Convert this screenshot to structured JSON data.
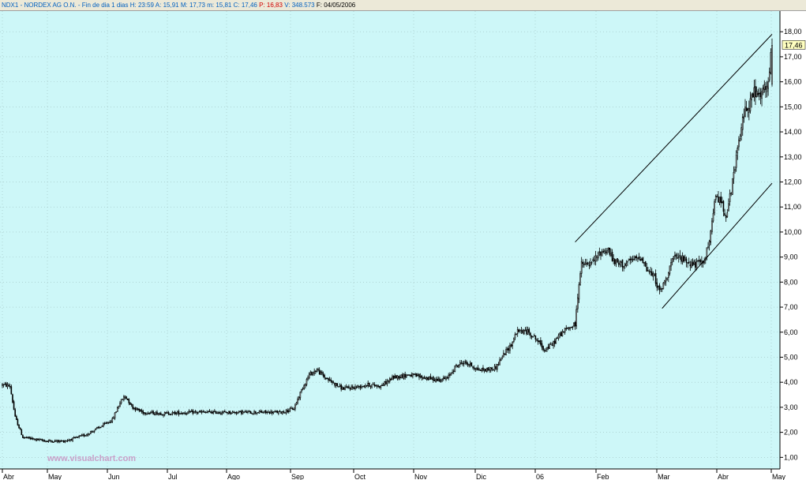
{
  "header": {
    "symbol_name": "NDX1 - NORDEX AG O.N. - Fin de dia 1 dias",
    "h_label": "H:",
    "h_value": "23:59",
    "a_label": "A:",
    "a_value": "15,91",
    "m_label": "M:",
    "m_value": "17,73",
    "mn_label": "m:",
    "mn_value": "15,81",
    "c_label": "C:",
    "c_value": "17,46",
    "p_label": "P:",
    "p_value": "16,83",
    "v_label": "V:",
    "v_value": "348.573",
    "f_label": "F:",
    "f_value": "04/05/2006"
  },
  "watermark": "www.visualchart.com",
  "last_price_tag": "17,46",
  "colors": {
    "background": "#cdf7f8",
    "up": "#ffffff",
    "down": "#000000",
    "grid": "#9fbfbf",
    "close_text": "#d00000"
  },
  "chart_data": {
    "type": "candlestick",
    "y_axis": {
      "min": 0.6,
      "max": 18.7,
      "ticks": [
        "1,00",
        "2,00",
        "3,00",
        "4,00",
        "5,00",
        "6,00",
        "7,00",
        "8,00",
        "9,00",
        "10,00",
        "11,00",
        "12,00",
        "13,00",
        "14,00",
        "15,00",
        "16,00",
        "17,00",
        "18,00"
      ]
    },
    "month_labels": [
      "Abr",
      "May",
      "Jun",
      "Jul",
      "Ago",
      "Sep",
      "Oct",
      "Nov",
      "Dic",
      "06",
      "Feb",
      "Mar",
      "Abr",
      "May"
    ],
    "grid": true,
    "anchors": [
      [
        0,
        3.9
      ],
      [
        6,
        3.85
      ],
      [
        10,
        2.6
      ],
      [
        16,
        1.8
      ],
      [
        22,
        1.75
      ],
      [
        35,
        1.65
      ],
      [
        48,
        1.65
      ],
      [
        56,
        1.75
      ],
      [
        65,
        1.9
      ],
      [
        76,
        2.2
      ],
      [
        86,
        2.5
      ],
      [
        92,
        3.2
      ],
      [
        96,
        3.45
      ],
      [
        102,
        3.0
      ],
      [
        110,
        2.8
      ],
      [
        126,
        2.75
      ],
      [
        150,
        2.8
      ],
      [
        174,
        2.8
      ],
      [
        200,
        2.8
      ],
      [
        218,
        2.8
      ],
      [
        228,
        2.95
      ],
      [
        234,
        3.7
      ],
      [
        240,
        4.3
      ],
      [
        246,
        4.5
      ],
      [
        252,
        4.2
      ],
      [
        258,
        4.0
      ],
      [
        266,
        3.75
      ],
      [
        276,
        3.8
      ],
      [
        286,
        3.9
      ],
      [
        296,
        3.85
      ],
      [
        306,
        4.2
      ],
      [
        318,
        4.3
      ],
      [
        328,
        4.2
      ],
      [
        340,
        4.1
      ],
      [
        348,
        4.15
      ],
      [
        354,
        4.6
      ],
      [
        360,
        4.8
      ],
      [
        366,
        4.7
      ],
      [
        372,
        4.5
      ],
      [
        380,
        4.5
      ],
      [
        386,
        4.6
      ],
      [
        392,
        5.1
      ],
      [
        398,
        5.5
      ],
      [
        402,
        6.0
      ],
      [
        406,
        6.05
      ],
      [
        412,
        6.0
      ],
      [
        418,
        5.7
      ],
      [
        424,
        5.3
      ],
      [
        430,
        5.5
      ],
      [
        436,
        5.9
      ],
      [
        442,
        6.15
      ],
      [
        448,
        6.3
      ],
      [
        451,
        8.0
      ],
      [
        453,
        8.7
      ],
      [
        460,
        8.7
      ],
      [
        468,
        9.2
      ],
      [
        474,
        9.3
      ],
      [
        478,
        8.8
      ],
      [
        486,
        8.7
      ],
      [
        494,
        8.9
      ],
      [
        500,
        9.0
      ],
      [
        504,
        8.5
      ],
      [
        510,
        8.2
      ],
      [
        514,
        7.6
      ],
      [
        518,
        8.0
      ],
      [
        524,
        8.9
      ],
      [
        530,
        9.0
      ],
      [
        536,
        8.8
      ],
      [
        542,
        8.7
      ],
      [
        548,
        8.8
      ],
      [
        552,
        9.4
      ],
      [
        555,
        10.3
      ],
      [
        558,
        11.5
      ],
      [
        562,
        11.2
      ],
      [
        566,
        10.7
      ],
      [
        570,
        11.6
      ],
      [
        574,
        13.0
      ],
      [
        577,
        13.8
      ],
      [
        580,
        14.8
      ],
      [
        584,
        15.1
      ],
      [
        588,
        15.6
      ],
      [
        592,
        15.4
      ],
      [
        595,
        15.6
      ],
      [
        599,
        15.9
      ],
      [
        602,
        17.46
      ]
    ],
    "num_days": 603,
    "ohlc_last": {
      "open": 15.91,
      "high": 17.73,
      "low": 15.81,
      "close": 17.46,
      "prev_close": 16.83,
      "volume": 348573,
      "date": "04/05/2006"
    },
    "trendlines": [
      {
        "x1": 448,
        "y1": 9.6,
        "x2": 602,
        "y2": 17.9
      },
      {
        "x1": 516,
        "y1": 6.95,
        "x2": 602,
        "y2": 11.95
      }
    ]
  }
}
